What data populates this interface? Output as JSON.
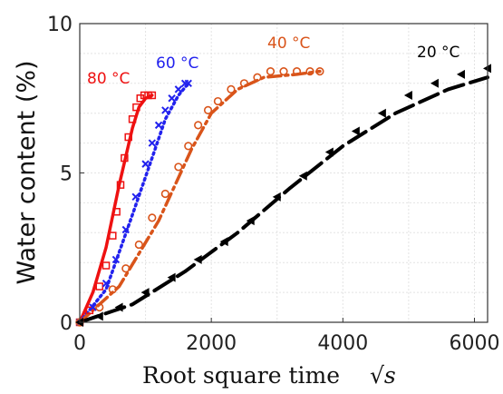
{
  "chart_data": {
    "type": "scatter",
    "xlabel": "Root square time",
    "xlabel_math": "√s",
    "ylabel": "Water content (%)",
    "xlim": [
      0,
      6200
    ],
    "ylim": [
      0,
      10
    ],
    "xticks": [
      "0",
      "2000",
      "4000",
      "6000"
    ],
    "yticks": [
      "0",
      "5",
      "10"
    ],
    "grid": true,
    "series": [
      {
        "name": "80 °C",
        "color": "#ee1111",
        "marker": "square-open",
        "line": "solid",
        "points": [
          [
            0,
            0
          ],
          [
            150,
            0.4
          ],
          [
            300,
            1.2
          ],
          [
            400,
            1.9
          ],
          [
            500,
            2.9
          ],
          [
            560,
            3.7
          ],
          [
            620,
            4.6
          ],
          [
            680,
            5.5
          ],
          [
            740,
            6.2
          ],
          [
            800,
            6.8
          ],
          [
            860,
            7.2
          ],
          [
            920,
            7.5
          ],
          [
            980,
            7.6
          ],
          [
            1040,
            7.6
          ],
          [
            1100,
            7.6
          ]
        ],
        "fit": [
          [
            0,
            0
          ],
          [
            200,
            1.0
          ],
          [
            400,
            2.5
          ],
          [
            600,
            4.6
          ],
          [
            800,
            6.5
          ],
          [
            900,
            7.2
          ],
          [
            1000,
            7.5
          ],
          [
            1100,
            7.6
          ]
        ]
      },
      {
        "name": "60 °C",
        "color": "#2222ee",
        "marker": "x",
        "line": "dotted",
        "points": [
          [
            0,
            0
          ],
          [
            200,
            0.5
          ],
          [
            400,
            1.3
          ],
          [
            550,
            2.1
          ],
          [
            700,
            3.1
          ],
          [
            850,
            4.2
          ],
          [
            1000,
            5.3
          ],
          [
            1100,
            6.0
          ],
          [
            1200,
            6.6
          ],
          [
            1300,
            7.1
          ],
          [
            1400,
            7.5
          ],
          [
            1500,
            7.8
          ],
          [
            1600,
            8.0
          ],
          [
            1650,
            8.0
          ]
        ],
        "fit": [
          [
            0,
            0
          ],
          [
            400,
            1.1
          ],
          [
            800,
            3.6
          ],
          [
            1100,
            5.5
          ],
          [
            1300,
            6.8
          ],
          [
            1500,
            7.6
          ],
          [
            1650,
            8.0
          ]
        ]
      },
      {
        "name": "40 °C",
        "color": "#d9541a",
        "marker": "circle-open",
        "line": "dashdot",
        "points": [
          [
            0,
            0
          ],
          [
            300,
            0.5
          ],
          [
            500,
            1.1
          ],
          [
            700,
            1.8
          ],
          [
            900,
            2.6
          ],
          [
            1100,
            3.5
          ],
          [
            1300,
            4.3
          ],
          [
            1500,
            5.2
          ],
          [
            1650,
            5.9
          ],
          [
            1800,
            6.6
          ],
          [
            1950,
            7.1
          ],
          [
            2100,
            7.4
          ],
          [
            2300,
            7.8
          ],
          [
            2500,
            8.0
          ],
          [
            2700,
            8.2
          ],
          [
            2900,
            8.4
          ],
          [
            3100,
            8.4
          ],
          [
            3300,
            8.4
          ],
          [
            3500,
            8.4
          ],
          [
            3650,
            8.4
          ]
        ],
        "fit": [
          [
            0,
            0
          ],
          [
            600,
            1.2
          ],
          [
            1200,
            3.4
          ],
          [
            1700,
            5.8
          ],
          [
            2000,
            7.0
          ],
          [
            2400,
            7.8
          ],
          [
            2800,
            8.2
          ],
          [
            3300,
            8.3
          ],
          [
            3650,
            8.4
          ]
        ]
      },
      {
        "name": "20 °C",
        "color": "#000000",
        "marker": "triangle-filled",
        "line": "dashed",
        "points": [
          [
            0,
            0
          ],
          [
            300,
            0.2
          ],
          [
            600,
            0.5
          ],
          [
            1000,
            1.0
          ],
          [
            1400,
            1.5
          ],
          [
            1800,
            2.1
          ],
          [
            2200,
            2.7
          ],
          [
            2600,
            3.4
          ],
          [
            3000,
            4.2
          ],
          [
            3400,
            4.9
          ],
          [
            3800,
            5.7
          ],
          [
            4200,
            6.4
          ],
          [
            4600,
            7.0
          ],
          [
            5000,
            7.6
          ],
          [
            5400,
            8.0
          ],
          [
            5800,
            8.3
          ],
          [
            6200,
            8.5
          ]
        ],
        "fit": [
          [
            0,
            0
          ],
          [
            800,
            0.6
          ],
          [
            1600,
            1.7
          ],
          [
            2400,
            3.0
          ],
          [
            3200,
            4.5
          ],
          [
            4000,
            5.9
          ],
          [
            4800,
            7.0
          ],
          [
            5600,
            7.8
          ],
          [
            6200,
            8.2
          ]
        ]
      }
    ]
  }
}
